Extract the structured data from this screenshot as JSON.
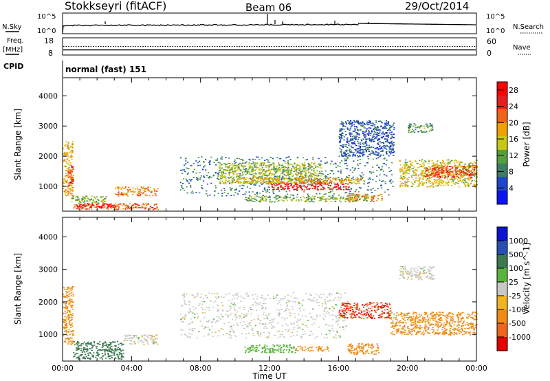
{
  "header": {
    "station": "Stokkseyri (fitACF)",
    "beam": "Beam 06",
    "date": "29/Oct/2014"
  },
  "strips": {
    "nsky_label": "N.Sky",
    "nsky_top": "10^5",
    "nsky_bottom": "10^0",
    "nsearch_label": "N.Search",
    "nsearch_top": "10^5",
    "nsearch_bottom": "10^0",
    "freq_label": "Freq.",
    "freq_unit": "[MHz]",
    "freq_top": "18",
    "freq_bottom": "8",
    "nave_label": "Nave",
    "nave_top": "60",
    "nave_bottom": "0",
    "cpid_label": "CPID",
    "cpid_value": "normal (fast) 151"
  },
  "colors": {
    "power_scale": [
      "#0a14f0",
      "#1e46c8",
      "#3c7d64",
      "#55a03c",
      "#c8c814",
      "#f0a000",
      "#f06414",
      "#e61e1e",
      "#ff0000"
    ],
    "velocity_scale": [
      "#0a14d2",
      "#2850b4",
      "#3c7850",
      "#5ab43c",
      "#c8c8c4",
      "#f0b41e",
      "#f08c14",
      "#f0641e",
      "#e60000"
    ]
  },
  "chart_data": [
    {
      "type": "heatmap",
      "title": "",
      "xlabel": "Time UT",
      "ylabel": "Slant Range [km]",
      "x_ticks": [
        "00:00",
        "04:00",
        "08:00",
        "12:00",
        "16:00",
        "20:00",
        "00:00"
      ],
      "xlim_hours": [
        0,
        24
      ],
      "y_ticks": [
        1000,
        2000,
        3000,
        4000
      ],
      "ylim": [
        180,
        4600
      ],
      "colorbar": {
        "label": "Power [dB]",
        "ticks": [
          4,
          8,
          12,
          16,
          20,
          24,
          28
        ],
        "range": [
          0,
          30
        ]
      },
      "regions": [
        {
          "t0": 0.0,
          "t1": 0.6,
          "r0": 700,
          "r1": 2500,
          "value": 18
        },
        {
          "t0": 0.3,
          "t1": 0.6,
          "r0": 1000,
          "r1": 1700,
          "value": 26
        },
        {
          "t0": 0.6,
          "t1": 5.5,
          "r0": 250,
          "r1": 450,
          "value": 22
        },
        {
          "t0": 0.8,
          "t1": 3.0,
          "r0": 300,
          "r1": 450,
          "value": 28
        },
        {
          "t0": 3.0,
          "t1": 5.5,
          "r0": 700,
          "r1": 1000,
          "value": 20
        },
        {
          "t0": 0.5,
          "t1": 2.5,
          "r0": 450,
          "r1": 700,
          "value": 12
        },
        {
          "t0": 6.8,
          "t1": 19.2,
          "r0": 700,
          "r1": 2000,
          "value": 8
        },
        {
          "t0": 9.0,
          "t1": 15.0,
          "r0": 1100,
          "r1": 1800,
          "value": 14
        },
        {
          "t0": 12.0,
          "t1": 16.6,
          "r0": 900,
          "r1": 1150,
          "value": 28
        },
        {
          "t0": 10.0,
          "t1": 17.5,
          "r0": 1100,
          "r1": 1300,
          "value": 18
        },
        {
          "t0": 10.5,
          "t1": 18.0,
          "r0": 500,
          "r1": 700,
          "value": 12
        },
        {
          "t0": 16.5,
          "t1": 18.5,
          "r0": 500,
          "r1": 750,
          "value": 20
        },
        {
          "t0": 16.0,
          "t1": 19.2,
          "r0": 2000,
          "r1": 3200,
          "value": 6
        },
        {
          "t0": 19.5,
          "t1": 24.0,
          "r0": 1000,
          "r1": 1900,
          "value": 16
        },
        {
          "t0": 21.0,
          "t1": 24.0,
          "r0": 1300,
          "r1": 1700,
          "value": 24
        },
        {
          "t0": 20.0,
          "t1": 21.5,
          "r0": 2800,
          "r1": 3100,
          "value": 10
        }
      ]
    },
    {
      "type": "heatmap",
      "title": "",
      "xlabel": "Time UT",
      "ylabel": "Slant Range [km]",
      "x_ticks": [
        "00:00",
        "04:00",
        "08:00",
        "12:00",
        "16:00",
        "20:00",
        "00:00"
      ],
      "xlim_hours": [
        0,
        24
      ],
      "y_ticks": [
        1000,
        2000,
        3000,
        4000
      ],
      "ylim": [
        180,
        4600
      ],
      "colorbar": {
        "label": "Velocity [m s^-1]",
        "ticks": [
          1000,
          500,
          100,
          25,
          -25,
          -100,
          -500,
          -1000
        ]
      },
      "regions": [
        {
          "t0": 0.0,
          "t1": 0.6,
          "r0": 700,
          "r1": 2500,
          "value": -200
        },
        {
          "t0": 0.6,
          "t1": 3.5,
          "r0": 250,
          "r1": 800,
          "value": 200
        },
        {
          "t0": 3.5,
          "t1": 5.5,
          "r0": 700,
          "r1": 1000,
          "value": 0
        },
        {
          "t0": 6.8,
          "t1": 16.5,
          "r0": 900,
          "r1": 2300,
          "value": 0
        },
        {
          "t0": 10.5,
          "t1": 13.5,
          "r0": 450,
          "r1": 700,
          "value": 60
        },
        {
          "t0": 13.5,
          "t1": 15.5,
          "r0": 500,
          "r1": 650,
          "value": -200
        },
        {
          "t0": 16.5,
          "t1": 18.3,
          "r0": 400,
          "r1": 750,
          "value": -300
        },
        {
          "t0": 16.0,
          "t1": 19.0,
          "r0": 1500,
          "r1": 2000,
          "value": -1000
        },
        {
          "t0": 19.0,
          "t1": 24.0,
          "r0": 1000,
          "r1": 1700,
          "value": -400
        },
        {
          "t0": 19.5,
          "t1": 21.5,
          "r0": 2700,
          "r1": 3100,
          "value": 0
        }
      ]
    }
  ]
}
